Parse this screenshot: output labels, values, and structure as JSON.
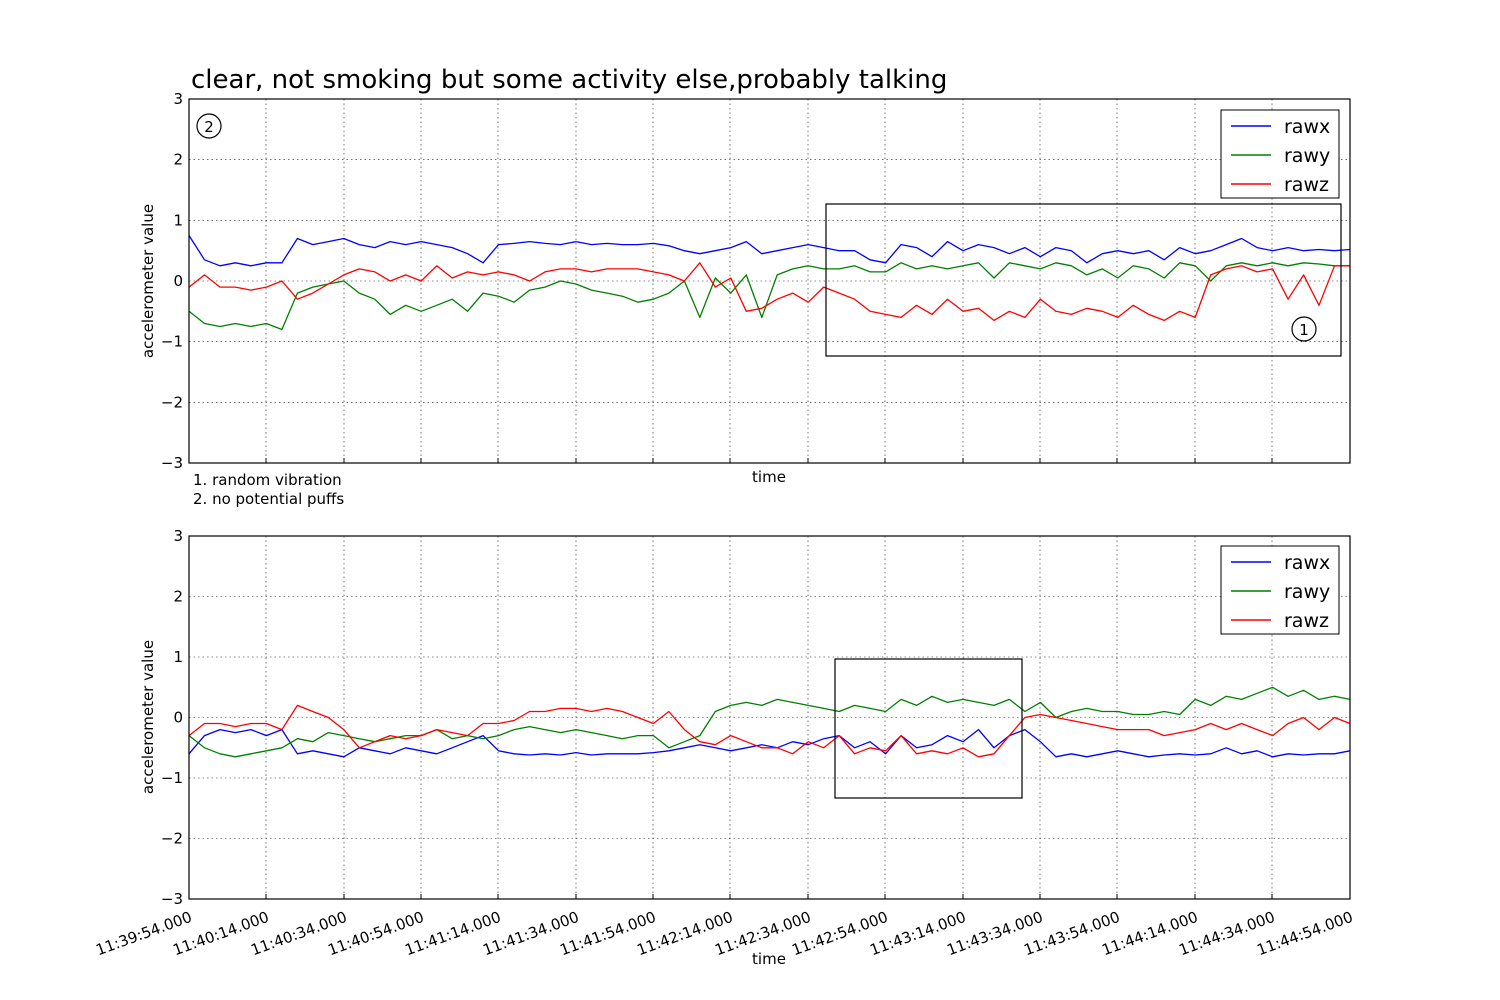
{
  "chart_data": [
    {
      "type": "line",
      "title": "clear, not smoking but some activity else,probably talking",
      "xlabel": "time",
      "ylabel": "accelerometer value",
      "ylim": [
        -3,
        3
      ],
      "yticks": [
        "3",
        "2",
        "1",
        "0",
        "−1",
        "−2",
        "−3"
      ],
      "grid": true,
      "legend_placement": "top-right",
      "xtick_labels_shown": false,
      "notes": [
        "1. random vibration",
        "2. no potential puffs"
      ],
      "region_markers": [
        "2",
        "1"
      ],
      "series": [
        {
          "name": "rawx",
          "color": "#0000ff",
          "x": [
            0,
            4,
            8,
            12,
            16,
            20,
            24,
            28,
            32,
            36,
            40,
            44,
            48,
            52,
            56,
            60,
            64,
            68,
            72,
            76,
            80,
            84,
            88,
            92,
            96,
            100,
            104,
            108,
            112,
            116,
            120,
            124,
            128,
            132,
            136,
            140,
            144,
            148,
            152,
            156,
            160,
            164,
            168,
            172,
            176,
            180,
            184,
            188,
            192,
            196,
            200,
            204,
            208,
            212,
            216,
            220,
            224,
            228,
            232,
            236,
            240,
            244,
            248,
            252,
            256,
            260,
            264,
            268,
            272,
            276,
            280,
            284,
            288,
            292,
            296,
            300
          ],
          "values": [
            0.75,
            0.35,
            0.25,
            0.3,
            0.25,
            0.3,
            0.3,
            0.7,
            0.6,
            0.65,
            0.7,
            0.6,
            0.55,
            0.65,
            0.6,
            0.65,
            0.6,
            0.55,
            0.45,
            0.3,
            0.6,
            0.62,
            0.65,
            0.62,
            0.6,
            0.65,
            0.6,
            0.62,
            0.6,
            0.6,
            0.62,
            0.58,
            0.5,
            0.45,
            0.5,
            0.55,
            0.65,
            0.45,
            0.5,
            0.55,
            0.6,
            0.55,
            0.5,
            0.5,
            0.35,
            0.3,
            0.6,
            0.55,
            0.4,
            0.65,
            0.5,
            0.6,
            0.55,
            0.45,
            0.55,
            0.4,
            0.55,
            0.5,
            0.3,
            0.45,
            0.5,
            0.45,
            0.5,
            0.35,
            0.55,
            0.45,
            0.5,
            0.6,
            0.7,
            0.55,
            0.5,
            0.55,
            0.5,
            0.52,
            0.5,
            0.52
          ]
        },
        {
          "name": "rawy",
          "color": "#008000",
          "x": [
            0,
            4,
            8,
            12,
            16,
            20,
            24,
            28,
            32,
            36,
            40,
            44,
            48,
            52,
            56,
            60,
            64,
            68,
            72,
            76,
            80,
            84,
            88,
            92,
            96,
            100,
            104,
            108,
            112,
            116,
            120,
            124,
            128,
            132,
            136,
            140,
            144,
            148,
            152,
            156,
            160,
            164,
            168,
            172,
            176,
            180,
            184,
            188,
            192,
            196,
            200,
            204,
            208,
            212,
            216,
            220,
            224,
            228,
            232,
            236,
            240,
            244,
            248,
            252,
            256,
            260,
            264,
            268,
            272,
            276,
            280,
            284,
            288,
            292,
            296,
            300
          ],
          "values": [
            -0.5,
            -0.7,
            -0.75,
            -0.7,
            -0.75,
            -0.7,
            -0.8,
            -0.2,
            -0.1,
            -0.05,
            0.0,
            -0.2,
            -0.3,
            -0.55,
            -0.4,
            -0.5,
            -0.4,
            -0.3,
            -0.5,
            -0.2,
            -0.25,
            -0.35,
            -0.15,
            -0.1,
            0.0,
            -0.05,
            -0.15,
            -0.2,
            -0.25,
            -0.35,
            -0.3,
            -0.2,
            0.0,
            -0.6,
            0.05,
            -0.2,
            0.1,
            -0.6,
            0.1,
            0.2,
            0.25,
            0.2,
            0.2,
            0.25,
            0.15,
            0.15,
            0.3,
            0.2,
            0.25,
            0.2,
            0.25,
            0.3,
            0.05,
            0.3,
            0.25,
            0.2,
            0.3,
            0.25,
            0.1,
            0.2,
            0.05,
            0.25,
            0.2,
            0.05,
            0.3,
            0.25,
            0.0,
            0.25,
            0.3,
            0.25,
            0.3,
            0.25,
            0.3,
            0.28,
            0.25,
            0.25
          ]
        },
        {
          "name": "rawz",
          "color": "#ff0000",
          "x": [
            0,
            4,
            8,
            12,
            16,
            20,
            24,
            28,
            32,
            36,
            40,
            44,
            48,
            52,
            56,
            60,
            64,
            68,
            72,
            76,
            80,
            84,
            88,
            92,
            96,
            100,
            104,
            108,
            112,
            116,
            120,
            124,
            128,
            132,
            136,
            140,
            144,
            148,
            152,
            156,
            160,
            164,
            168,
            172,
            176,
            180,
            184,
            188,
            192,
            196,
            200,
            204,
            208,
            212,
            216,
            220,
            224,
            228,
            232,
            236,
            240,
            244,
            248,
            252,
            256,
            260,
            264,
            268,
            272,
            276,
            280,
            284,
            288,
            292,
            296,
            300
          ],
          "values": [
            -0.1,
            0.1,
            -0.1,
            -0.1,
            -0.15,
            -0.1,
            0.0,
            -0.3,
            -0.2,
            -0.05,
            0.1,
            0.2,
            0.15,
            0.0,
            0.1,
            0.0,
            0.25,
            0.05,
            0.15,
            0.1,
            0.15,
            0.1,
            0.0,
            0.15,
            0.2,
            0.2,
            0.15,
            0.2,
            0.2,
            0.2,
            0.15,
            0.1,
            0.0,
            0.3,
            -0.1,
            0.05,
            -0.5,
            -0.45,
            -0.3,
            -0.2,
            -0.35,
            -0.1,
            -0.2,
            -0.3,
            -0.5,
            -0.55,
            -0.6,
            -0.4,
            -0.55,
            -0.3,
            -0.5,
            -0.45,
            -0.65,
            -0.5,
            -0.6,
            -0.3,
            -0.5,
            -0.55,
            -0.45,
            -0.5,
            -0.6,
            -0.4,
            -0.55,
            -0.65,
            -0.5,
            -0.6,
            0.1,
            0.2,
            0.25,
            0.15,
            0.2,
            -0.3,
            0.1,
            -0.4,
            0.25,
            0.25
          ]
        }
      ]
    },
    {
      "type": "line",
      "xlabel": "time",
      "ylabel": "accelerometer value",
      "ylim": [
        -3,
        3
      ],
      "yticks": [
        "3",
        "2",
        "1",
        "0",
        "−1",
        "−2",
        "−3"
      ],
      "grid": true,
      "legend_placement": "top-right",
      "xtick_labels_shown": true,
      "xticks": [
        "11:39:54.000",
        "11:40:14.000",
        "11:40:34.000",
        "11:40:54.000",
        "11:41:14.000",
        "11:41:34.000",
        "11:41:54.000",
        "11:42:14.000",
        "11:42:34.000",
        "11:42:54.000",
        "11:43:14.000",
        "11:43:34.000",
        "11:43:54.000",
        "11:44:14.000",
        "11:44:34.000",
        "11:44:54.000"
      ],
      "series": [
        {
          "name": "rawx",
          "color": "#0000ff",
          "x": [
            0,
            4,
            8,
            12,
            16,
            20,
            24,
            28,
            32,
            36,
            40,
            44,
            48,
            52,
            56,
            60,
            64,
            68,
            72,
            76,
            80,
            84,
            88,
            92,
            96,
            100,
            104,
            108,
            112,
            116,
            120,
            124,
            128,
            132,
            136,
            140,
            144,
            148,
            152,
            156,
            160,
            164,
            168,
            172,
            176,
            180,
            184,
            188,
            192,
            196,
            200,
            204,
            208,
            212,
            216,
            220,
            224,
            228,
            232,
            236,
            240,
            244,
            248,
            252,
            256,
            260,
            264,
            268,
            272,
            276,
            280,
            284,
            288,
            292,
            296,
            300
          ],
          "values": [
            -0.6,
            -0.3,
            -0.2,
            -0.25,
            -0.2,
            -0.3,
            -0.2,
            -0.6,
            -0.55,
            -0.6,
            -0.65,
            -0.5,
            -0.55,
            -0.6,
            -0.5,
            -0.55,
            -0.6,
            -0.5,
            -0.4,
            -0.3,
            -0.55,
            -0.6,
            -0.62,
            -0.6,
            -0.62,
            -0.58,
            -0.62,
            -0.6,
            -0.6,
            -0.6,
            -0.58,
            -0.55,
            -0.5,
            -0.45,
            -0.5,
            -0.55,
            -0.5,
            -0.45,
            -0.5,
            -0.4,
            -0.45,
            -0.35,
            -0.3,
            -0.5,
            -0.4,
            -0.6,
            -0.3,
            -0.5,
            -0.45,
            -0.3,
            -0.4,
            -0.2,
            -0.5,
            -0.3,
            -0.2,
            -0.4,
            -0.65,
            -0.6,
            -0.65,
            -0.6,
            -0.55,
            -0.6,
            -0.65,
            -0.62,
            -0.6,
            -0.62,
            -0.6,
            -0.5,
            -0.6,
            -0.55,
            -0.65,
            -0.6,
            -0.62,
            -0.6,
            -0.6,
            -0.55
          ]
        },
        {
          "name": "rawy",
          "color": "#008000",
          "x": [
            0,
            4,
            8,
            12,
            16,
            20,
            24,
            28,
            32,
            36,
            40,
            44,
            48,
            52,
            56,
            60,
            64,
            68,
            72,
            76,
            80,
            84,
            88,
            92,
            96,
            100,
            104,
            108,
            112,
            116,
            120,
            124,
            128,
            132,
            136,
            140,
            144,
            148,
            152,
            156,
            160,
            164,
            168,
            172,
            176,
            180,
            184,
            188,
            192,
            196,
            200,
            204,
            208,
            212,
            216,
            220,
            224,
            228,
            232,
            236,
            240,
            244,
            248,
            252,
            256,
            260,
            264,
            268,
            272,
            276,
            280,
            284,
            288,
            292,
            296,
            300
          ],
          "values": [
            -0.3,
            -0.5,
            -0.6,
            -0.65,
            -0.6,
            -0.55,
            -0.5,
            -0.35,
            -0.4,
            -0.25,
            -0.3,
            -0.35,
            -0.4,
            -0.35,
            -0.3,
            -0.3,
            -0.2,
            -0.35,
            -0.3,
            -0.35,
            -0.3,
            -0.2,
            -0.15,
            -0.2,
            -0.25,
            -0.2,
            -0.25,
            -0.3,
            -0.35,
            -0.3,
            -0.3,
            -0.5,
            -0.4,
            -0.3,
            0.1,
            0.2,
            0.25,
            0.2,
            0.3,
            0.25,
            0.2,
            0.15,
            0.1,
            0.2,
            0.15,
            0.1,
            0.3,
            0.2,
            0.35,
            0.25,
            0.3,
            0.25,
            0.2,
            0.3,
            0.1,
            0.25,
            0.0,
            0.1,
            0.15,
            0.1,
            0.1,
            0.05,
            0.05,
            0.1,
            0.05,
            0.3,
            0.2,
            0.35,
            0.3,
            0.4,
            0.5,
            0.35,
            0.45,
            0.3,
            0.35,
            0.3
          ]
        },
        {
          "name": "rawz",
          "color": "#ff0000",
          "x": [
            0,
            4,
            8,
            12,
            16,
            20,
            24,
            28,
            32,
            36,
            40,
            44,
            48,
            52,
            56,
            60,
            64,
            68,
            72,
            76,
            80,
            84,
            88,
            92,
            96,
            100,
            104,
            108,
            112,
            116,
            120,
            124,
            128,
            132,
            136,
            140,
            144,
            148,
            152,
            156,
            160,
            164,
            168,
            172,
            176,
            180,
            184,
            188,
            192,
            196,
            200,
            204,
            208,
            212,
            216,
            220,
            224,
            228,
            232,
            236,
            240,
            244,
            248,
            252,
            256,
            260,
            264,
            268,
            272,
            276,
            280,
            284,
            288,
            292,
            296,
            300
          ],
          "values": [
            -0.3,
            -0.1,
            -0.1,
            -0.15,
            -0.1,
            -0.1,
            -0.2,
            0.2,
            0.1,
            0.0,
            -0.2,
            -0.5,
            -0.4,
            -0.3,
            -0.35,
            -0.3,
            -0.2,
            -0.25,
            -0.3,
            -0.1,
            -0.1,
            -0.05,
            0.1,
            0.1,
            0.15,
            0.15,
            0.1,
            0.15,
            0.1,
            0.0,
            -0.1,
            0.1,
            -0.2,
            -0.4,
            -0.45,
            -0.3,
            -0.4,
            -0.5,
            -0.5,
            -0.6,
            -0.4,
            -0.5,
            -0.3,
            -0.6,
            -0.5,
            -0.55,
            -0.3,
            -0.6,
            -0.55,
            -0.6,
            -0.5,
            -0.65,
            -0.6,
            -0.3,
            0.0,
            0.05,
            0.0,
            -0.05,
            -0.1,
            -0.15,
            -0.2,
            -0.2,
            -0.2,
            -0.3,
            -0.25,
            -0.2,
            -0.1,
            -0.2,
            -0.1,
            -0.2,
            -0.3,
            -0.1,
            0.0,
            -0.2,
            0.0,
            -0.1
          ]
        }
      ]
    }
  ]
}
